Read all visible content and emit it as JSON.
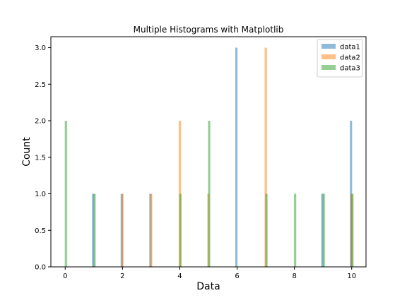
{
  "chart_data": {
    "type": "bar",
    "title": "Multiple Histograms with Matplotlib",
    "xlabel": "Data",
    "ylabel": "Count",
    "xlim": [
      -0.5,
      10.5
    ],
    "ylim": [
      0,
      3.15
    ],
    "xticks": [
      0,
      2,
      4,
      6,
      8,
      10
    ],
    "yticks": [
      0.0,
      0.5,
      1.0,
      1.5,
      2.0,
      2.5,
      3.0
    ],
    "grid": false,
    "legend_position": "top-right",
    "series": [
      {
        "name": "data1",
        "color": "#1f77b4",
        "points": [
          {
            "x": 1,
            "y": 1
          },
          {
            "x": 2,
            "y": 1
          },
          {
            "x": 3,
            "y": 1
          },
          {
            "x": 6,
            "y": 3
          },
          {
            "x": 9,
            "y": 1
          },
          {
            "x": 10,
            "y": 2
          }
        ]
      },
      {
        "name": "data2",
        "color": "#ff7f0e",
        "points": [
          {
            "x": 2,
            "y": 1
          },
          {
            "x": 3,
            "y": 1
          },
          {
            "x": 4,
            "y": 2
          },
          {
            "x": 5,
            "y": 1
          },
          {
            "x": 7,
            "y": 3
          },
          {
            "x": 10,
            "y": 1
          }
        ]
      },
      {
        "name": "data3",
        "color": "#2ca02c",
        "points": [
          {
            "x": 0,
            "y": 2
          },
          {
            "x": 1,
            "y": 1
          },
          {
            "x": 4,
            "y": 1
          },
          {
            "x": 5,
            "y": 2
          },
          {
            "x": 7,
            "y": 1
          },
          {
            "x": 8,
            "y": 1
          },
          {
            "x": 9,
            "y": 1
          },
          {
            "x": 10,
            "y": 1
          }
        ]
      }
    ]
  }
}
